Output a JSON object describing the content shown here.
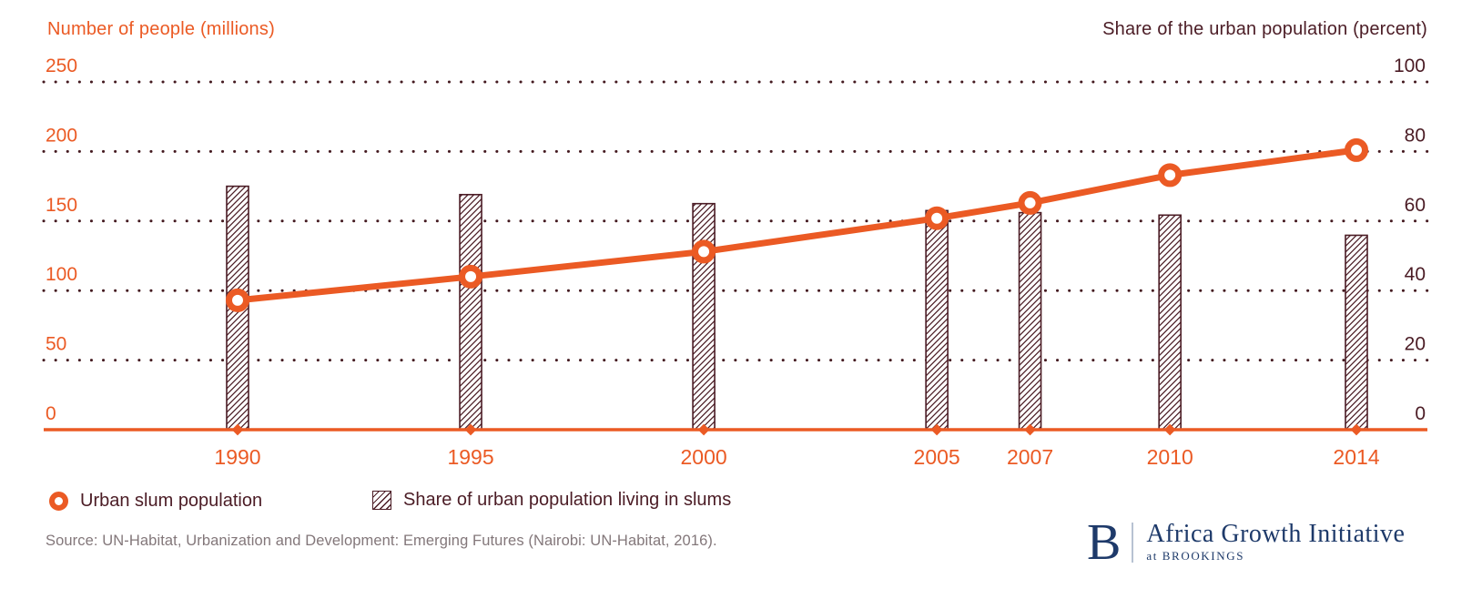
{
  "theme": {
    "orange": "#EB5A24",
    "dark_maroon": "#4B1C25",
    "grid_dot_color": "#441A20",
    "source_text_color": "#83777A",
    "logo_navy": "#1E3A6A",
    "background": "#FFFFFF"
  },
  "chart_data": {
    "type": "combo-line-bar",
    "categories": [
      1990,
      1995,
      2000,
      2005,
      2007,
      2010,
      2014
    ],
    "series": [
      {
        "name": "Urban slum population",
        "type": "line",
        "axis": "left",
        "marker": "open-circle",
        "color": "#EB5A24",
        "values": [
          93,
          110,
          128,
          152,
          163,
          183,
          201
        ]
      },
      {
        "name": "Share of urban population living in slums",
        "type": "bar",
        "axis": "right",
        "fill": "diagonal-hatch",
        "color": "#4B1C25",
        "values": [
          70,
          67.6,
          65,
          63,
          62.4,
          61.7,
          55.9
        ]
      }
    ],
    "left_axis": {
      "title": "Number of people (millions)",
      "ticks": [
        0,
        50,
        100,
        150,
        200,
        250
      ],
      "range": [
        0,
        250
      ]
    },
    "right_axis": {
      "title": "Share of the urban population (percent)",
      "ticks": [
        0,
        20,
        40,
        60,
        80,
        100
      ],
      "range": [
        0,
        100
      ]
    },
    "grid": {
      "horizontal": "dotted",
      "vertical": "none"
    }
  },
  "legend": {
    "items": [
      {
        "icon": "orange-ring-marker",
        "label": "Urban slum population"
      },
      {
        "icon": "hatched-square",
        "label": "Share of urban population living in slums"
      }
    ]
  },
  "source": "Source: UN-Habitat, Urbanization and Development: Emerging Futures (Nairobi: UN-Habitat, 2016).",
  "logo": {
    "letter": "B",
    "title": "Africa Growth Initiative",
    "subtitle": "at BROOKINGS"
  }
}
